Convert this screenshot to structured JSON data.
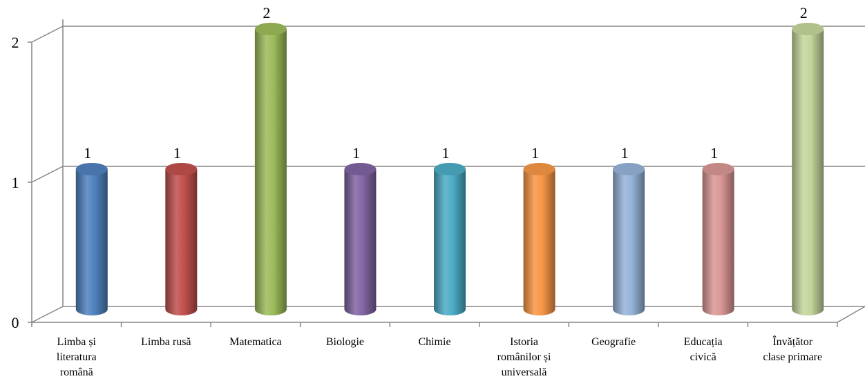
{
  "chart_data": {
    "type": "bar",
    "style": "3d-cylinder",
    "categories": [
      "Limba și literatura română",
      "Limba rusă",
      "Matematica",
      "Biologie",
      "Chimie",
      "Istoria românilor și universală",
      "Geografie",
      "Educația civică",
      "Învățător clase primare"
    ],
    "category_label_lines": [
      [
        "Limba și",
        "literatura",
        "română"
      ],
      [
        "Limba rusă"
      ],
      [
        "Matematica"
      ],
      [
        "Biologie"
      ],
      [
        "Chimie"
      ],
      [
        "Istoria",
        "românilor și",
        "universală"
      ],
      [
        "Geografie"
      ],
      [
        "Educația",
        "civică"
      ],
      [
        "Învățător",
        "clase primare"
      ]
    ],
    "values": [
      1,
      1,
      2,
      1,
      1,
      1,
      1,
      1,
      2
    ],
    "value_labels": [
      "1",
      "1",
      "2",
      "1",
      "1",
      "1",
      "1",
      "1",
      "2"
    ],
    "colors": [
      "#4f81bd",
      "#c0504d",
      "#9bbb59",
      "#8064a2",
      "#4bacc6",
      "#f79646",
      "#95b3d7",
      "#d99694",
      "#c3d69b"
    ],
    "y_ticks": [
      "0",
      "1",
      "2"
    ],
    "ylim": [
      0,
      2
    ],
    "grid": true,
    "legend": "none",
    "title": "",
    "xlabel": "",
    "ylabel": ""
  }
}
